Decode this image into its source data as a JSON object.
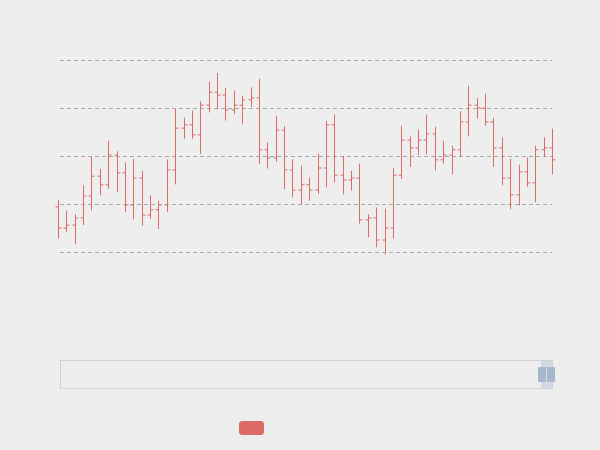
{
  "chart_data": {
    "type": "ohlc",
    "color": "#dd6b66",
    "grid": true,
    "ylim": [
      0,
      40
    ],
    "yticks": [
      0,
      10,
      20,
      30,
      40
    ],
    "open": [
      9.4,
      5.0,
      5.6,
      7.1,
      11.7,
      15.8,
      14.0,
      20.2,
      16.5,
      9.8,
      15.4,
      7.7,
      8.8,
      9.8,
      17.1,
      25.8,
      26.5,
      24.4,
      30.6,
      33.3,
      32.7,
      29.6,
      30.6,
      31.7,
      32.1,
      21.3,
      19.6,
      25.4,
      17.1,
      12.9,
      14.0,
      12.9,
      17.5,
      26.5,
      16.0,
      15.0,
      15.4,
      6.7,
      7.1,
      2.5,
      5.0,
      16.0,
      23.3,
      21.7,
      23.3,
      24.6,
      19.2,
      20.2,
      21.3,
      27.1,
      30.6,
      30.0,
      27.1,
      21.7,
      15.4,
      11.9,
      16.7,
      14.4,
      21.3,
      21.7
    ],
    "close": [
      5.0,
      5.6,
      7.1,
      11.7,
      15.8,
      14.0,
      20.2,
      16.5,
      9.8,
      15.4,
      7.7,
      8.8,
      9.8,
      17.1,
      25.8,
      26.5,
      24.4,
      30.6,
      33.3,
      32.7,
      29.6,
      30.6,
      31.7,
      32.1,
      21.3,
      19.6,
      25.4,
      17.1,
      12.9,
      14.0,
      12.9,
      17.5,
      26.5,
      16.0,
      15.0,
      15.4,
      6.7,
      7.1,
      2.5,
      5.0,
      16.0,
      23.3,
      21.7,
      23.3,
      24.6,
      19.2,
      20.2,
      21.3,
      27.1,
      30.6,
      30.0,
      27.1,
      21.7,
      15.4,
      11.9,
      16.7,
      14.4,
      21.3,
      21.7,
      19.2
    ],
    "low": [
      2.8,
      4.2,
      1.6,
      5.6,
      8.7,
      11.8,
      13.2,
      12.5,
      8.3,
      6.8,
      5.5,
      6.9,
      4.8,
      8.3,
      14.1,
      23.6,
      23.6,
      20.4,
      29.1,
      29.7,
      27.4,
      28.8,
      26.6,
      30.2,
      18.3,
      17.4,
      18.8,
      13.1,
      11.4,
      9.9,
      10.7,
      12.1,
      13.5,
      14.5,
      12.0,
      12.8,
      5.9,
      3.1,
      1.0,
      -0.5,
      2.8,
      15.2,
      17.7,
      20.2,
      20.3,
      17.0,
      18.4,
      16.2,
      19.8,
      24.1,
      27.8,
      26.3,
      17.7,
      13.9,
      8.9,
      9.7,
      13.6,
      10.4,
      19.8,
      16.2
    ],
    "high": [
      10.9,
      8.6,
      7.9,
      13.9,
      19.8,
      17.3,
      23.2,
      21.0,
      18.7,
      19.4,
      16.9,
      11.8,
      10.6,
      19.3,
      29.8,
      28.0,
      29.5,
      31.4,
      35.5,
      37.3,
      34.2,
      33.6,
      32.5,
      34.3,
      36.1,
      22.8,
      28.4,
      26.2,
      19.3,
      18.0,
      15.5,
      20.5,
      27.3,
      28.7,
      20.0,
      16.9,
      18.4,
      7.9,
      9.3,
      9.0,
      17.5,
      26.3,
      24.1,
      25.5,
      28.6,
      26.1,
      23.2,
      22.1,
      29.3,
      34.6,
      32.1,
      33.0,
      27.9,
      23.9,
      19.4,
      18.2,
      19.7,
      22.1,
      23.9,
      25.7
    ]
  }
}
